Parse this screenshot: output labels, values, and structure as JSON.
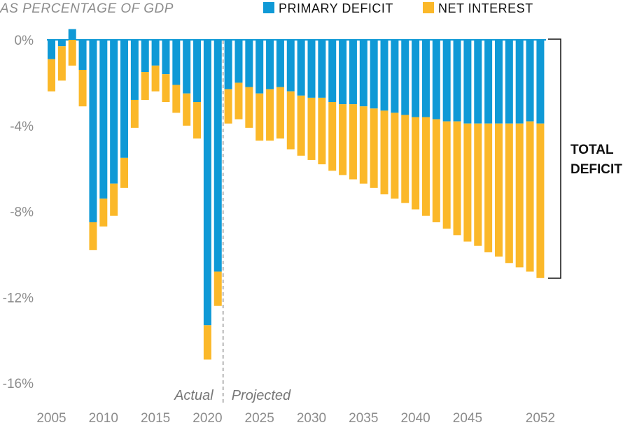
{
  "chart_data": {
    "type": "bar",
    "stacked": true,
    "subtitle": "AS PERCENTAGE OF GDP",
    "xlabel": "",
    "ylabel": "",
    "ylim": [
      -16,
      0.6
    ],
    "y_ticks": [
      0,
      -4,
      -8,
      -12,
      -16
    ],
    "y_tick_labels": [
      "0%",
      "-4%",
      "-8%",
      "-12%",
      "-16%"
    ],
    "x_tick_labels": [
      "2005",
      "2010",
      "2015",
      "2020",
      "2025",
      "2030",
      "2035",
      "2040",
      "2045",
      "2052"
    ],
    "years": [
      2005,
      2006,
      2007,
      2008,
      2009,
      2010,
      2011,
      2012,
      2013,
      2014,
      2015,
      2016,
      2017,
      2018,
      2019,
      2020,
      2021,
      2022,
      2023,
      2024,
      2025,
      2026,
      2027,
      2028,
      2029,
      2030,
      2031,
      2032,
      2033,
      2034,
      2035,
      2036,
      2037,
      2038,
      2039,
      2040,
      2041,
      2042,
      2043,
      2044,
      2045,
      2046,
      2047,
      2048,
      2049,
      2050,
      2051,
      2052
    ],
    "series": [
      {
        "name": "PRIMARY DEFICIT",
        "color": "#0f99d6",
        "values": [
          -0.9,
          -0.3,
          0.5,
          -1.4,
          -8.5,
          -7.4,
          -6.7,
          -5.5,
          -2.8,
          -1.5,
          -1.2,
          -1.6,
          -2.1,
          -2.5,
          -2.9,
          -13.3,
          -10.8,
          -2.3,
          -2.0,
          -2.2,
          -2.5,
          -2.3,
          -2.2,
          -2.4,
          -2.6,
          -2.7,
          -2.7,
          -2.9,
          -3.0,
          -3.0,
          -3.1,
          -3.2,
          -3.3,
          -3.4,
          -3.5,
          -3.6,
          -3.6,
          -3.7,
          -3.8,
          -3.8,
          -3.9,
          -3.9,
          -3.9,
          -3.9,
          -3.9,
          -3.9,
          -3.8,
          -3.9
        ]
      },
      {
        "name": "NET INTEREST",
        "color": "#fbb829",
        "values": [
          -1.5,
          -1.6,
          -1.2,
          -1.7,
          -1.3,
          -1.3,
          -1.5,
          -1.4,
          -1.3,
          -1.3,
          -1.2,
          -1.3,
          -1.3,
          -1.5,
          -1.7,
          -1.6,
          -1.6,
          -1.6,
          -1.7,
          -1.9,
          -2.2,
          -2.4,
          -2.4,
          -2.7,
          -2.8,
          -2.9,
          -3.1,
          -3.2,
          -3.3,
          -3.5,
          -3.6,
          -3.7,
          -3.9,
          -4.0,
          -4.1,
          -4.3,
          -4.6,
          -4.8,
          -5.0,
          -5.3,
          -5.5,
          -5.7,
          -6.0,
          -6.2,
          -6.5,
          -6.7,
          -7.0,
          -7.2
        ]
      }
    ],
    "legend_position": "top",
    "divider_after_year": 2021,
    "period_labels": [
      "Actual",
      "Projected"
    ],
    "bracket_label": [
      "TOTAL",
      "DEFICIT"
    ],
    "grid": false
  }
}
